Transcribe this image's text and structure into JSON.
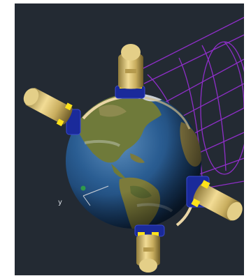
{
  "scene": {
    "description_name": "earth-with-thrusters-3d-view",
    "axis_glyph": "y",
    "colors": {
      "background": "#232a33",
      "frame": "#ffffff",
      "ocean": "#1f4f86",
      "land": "#6f7a3a",
      "ring": "#ead6a6",
      "thruster_body": "#d8c27a",
      "thruster_accent": "#ffe21a",
      "mount": "#1a2a9a",
      "grid": "#9a2fd8",
      "axis": "#c9ced6"
    }
  }
}
